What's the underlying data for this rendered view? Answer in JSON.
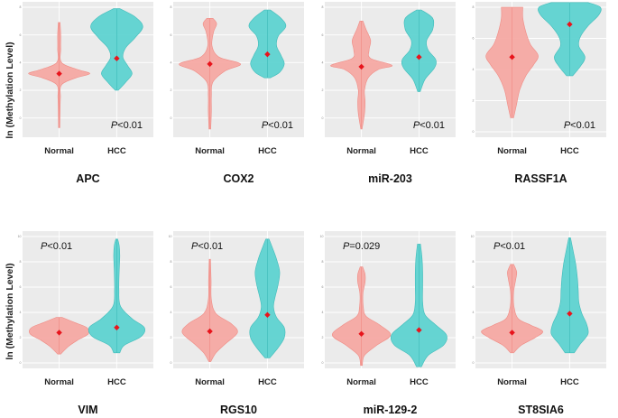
{
  "y_axis_label": "ln (Methylation Level)",
  "colors": {
    "normal_fill": "#f6a9a3",
    "normal_stroke": "#f08b84",
    "hcc_fill": "#5ed3d1",
    "hcc_stroke": "#3fbcba",
    "median": "#e8141c",
    "panel_bg": "#ebebeb",
    "grid": "#ffffff"
  },
  "chart_data": [
    {
      "type": "violin",
      "gene": "APC",
      "p_prefix": "P",
      "p_value": "<0.01",
      "categories": [
        "Normal",
        "HCC"
      ],
      "ylim": [
        -1,
        8
      ],
      "series": [
        {
          "name": "Normal",
          "median": 3.2,
          "min": -0.7,
          "max": 6.9,
          "density": [
            [
              -0.7,
              0.02
            ],
            [
              0.5,
              0.03
            ],
            [
              1.5,
              0.04
            ],
            [
              2.4,
              0.08
            ],
            [
              2.9,
              0.55
            ],
            [
              3.2,
              1.0
            ],
            [
              3.5,
              0.6
            ],
            [
              4.0,
              0.08
            ],
            [
              5.0,
              0.05
            ],
            [
              6.0,
              0.05
            ],
            [
              6.9,
              0.03
            ]
          ]
        },
        {
          "name": "HCC",
          "median": 4.3,
          "min": 2.0,
          "max": 7.9,
          "density": [
            [
              2.0,
              0.05
            ],
            [
              2.6,
              0.3
            ],
            [
              3.2,
              0.5
            ],
            [
              3.8,
              0.35
            ],
            [
              4.4,
              0.2
            ],
            [
              5.1,
              0.3
            ],
            [
              5.8,
              0.6
            ],
            [
              6.6,
              0.85
            ],
            [
              7.3,
              0.6
            ],
            [
              7.9,
              0.1
            ]
          ]
        }
      ]
    },
    {
      "type": "violin",
      "gene": "COX2",
      "p_prefix": "P",
      "p_value": "<0.01",
      "categories": [
        "Normal",
        "HCC"
      ],
      "ylim": [
        -1,
        8
      ],
      "series": [
        {
          "name": "Normal",
          "median": 3.9,
          "min": -0.8,
          "max": 7.2,
          "density": [
            [
              -0.8,
              0.03
            ],
            [
              0.5,
              0.05
            ],
            [
              1.6,
              0.05
            ],
            [
              2.6,
              0.1
            ],
            [
              3.4,
              0.5
            ],
            [
              3.9,
              1.0
            ],
            [
              4.4,
              0.3
            ],
            [
              5.2,
              0.07
            ],
            [
              6.2,
              0.12
            ],
            [
              6.8,
              0.22
            ],
            [
              7.2,
              0.1
            ]
          ]
        },
        {
          "name": "HCC",
          "median": 4.6,
          "min": 2.9,
          "max": 7.8,
          "density": [
            [
              2.9,
              0.1
            ],
            [
              3.3,
              0.4
            ],
            [
              3.9,
              0.55
            ],
            [
              4.5,
              0.45
            ],
            [
              5.2,
              0.3
            ],
            [
              5.9,
              0.35
            ],
            [
              6.6,
              0.6
            ],
            [
              7.2,
              0.45
            ],
            [
              7.8,
              0.1
            ]
          ]
        }
      ]
    },
    {
      "type": "violin",
      "gene": "miR-203",
      "p_prefix": "P",
      "p_value": "<0.01",
      "categories": [
        "Normal",
        "HCC"
      ],
      "ylim": [
        -1,
        8
      ],
      "series": [
        {
          "name": "Normal",
          "median": 3.7,
          "min": -0.8,
          "max": 7.0,
          "density": [
            [
              -0.8,
              0.02
            ],
            [
              0.3,
              0.1
            ],
            [
              1.2,
              0.12
            ],
            [
              2.0,
              0.1
            ],
            [
              2.9,
              0.22
            ],
            [
              3.5,
              0.55
            ],
            [
              3.8,
              1.0
            ],
            [
              4.3,
              0.3
            ],
            [
              4.9,
              0.25
            ],
            [
              5.6,
              0.3
            ],
            [
              6.4,
              0.15
            ],
            [
              7.0,
              0.05
            ]
          ]
        },
        {
          "name": "HCC",
          "median": 4.4,
          "min": 1.9,
          "max": 7.8,
          "density": [
            [
              1.9,
              0.04
            ],
            [
              2.8,
              0.2
            ],
            [
              3.6,
              0.5
            ],
            [
              4.2,
              0.55
            ],
            [
              4.9,
              0.3
            ],
            [
              5.6,
              0.25
            ],
            [
              6.4,
              0.45
            ],
            [
              7.2,
              0.45
            ],
            [
              7.8,
              0.08
            ]
          ]
        }
      ]
    },
    {
      "type": "violin",
      "gene": "RASSF1A",
      "p_prefix": "P",
      "p_value": "<0.01",
      "categories": [
        "Normal",
        "HCC"
      ],
      "ylim": [
        0,
        8
      ],
      "series": [
        {
          "name": "Normal",
          "median": 4.8,
          "min": 0.9,
          "max": 8.0,
          "density": [
            [
              0.9,
              0.05
            ],
            [
              1.8,
              0.15
            ],
            [
              2.7,
              0.25
            ],
            [
              3.6,
              0.45
            ],
            [
              4.3,
              0.7
            ],
            [
              4.9,
              0.85
            ],
            [
              5.6,
              0.6
            ],
            [
              6.4,
              0.45
            ],
            [
              7.3,
              0.35
            ],
            [
              8.0,
              0.35
            ]
          ]
        },
        {
          "name": "HCC",
          "median": 6.9,
          "min": 3.6,
          "max": 8.3,
          "density": [
            [
              3.6,
              0.1
            ],
            [
              4.2,
              0.35
            ],
            [
              4.8,
              0.5
            ],
            [
              5.5,
              0.3
            ],
            [
              6.1,
              0.35
            ],
            [
              6.8,
              0.6
            ],
            [
              7.5,
              0.95
            ],
            [
              8.0,
              1.0
            ],
            [
              8.3,
              0.6
            ]
          ]
        }
      ]
    },
    {
      "type": "violin",
      "gene": "VIM",
      "p_prefix": "P",
      "p_value": "<0.01",
      "categories": [
        "Normal",
        "HCC"
      ],
      "ylim": [
        0,
        10
      ],
      "series": [
        {
          "name": "Normal",
          "median": 2.4,
          "min": 0.7,
          "max": 3.6,
          "density": [
            [
              0.7,
              0.05
            ],
            [
              1.3,
              0.3
            ],
            [
              1.8,
              0.6
            ],
            [
              2.3,
              0.95
            ],
            [
              2.8,
              0.9
            ],
            [
              3.2,
              0.5
            ],
            [
              3.6,
              0.1
            ]
          ]
        },
        {
          "name": "HCC",
          "median": 2.8,
          "min": 0.8,
          "max": 9.8,
          "density": [
            [
              0.8,
              0.1
            ],
            [
              1.4,
              0.25
            ],
            [
              2.1,
              0.8
            ],
            [
              2.8,
              0.9
            ],
            [
              3.5,
              0.5
            ],
            [
              4.5,
              0.12
            ],
            [
              5.8,
              0.07
            ],
            [
              7.2,
              0.08
            ],
            [
              8.5,
              0.1
            ],
            [
              9.3,
              0.08
            ],
            [
              9.8,
              0.03
            ]
          ]
        }
      ]
    },
    {
      "type": "violin",
      "gene": "RGS10",
      "p_prefix": "P",
      "p_value": "<0.01",
      "categories": [
        "Normal",
        "HCC"
      ],
      "ylim": [
        0,
        10
      ],
      "series": [
        {
          "name": "Normal",
          "median": 2.5,
          "min": 0.1,
          "max": 8.2,
          "density": [
            [
              0.1,
              0.03
            ],
            [
              0.8,
              0.2
            ],
            [
              1.5,
              0.5
            ],
            [
              2.4,
              0.9
            ],
            [
              3.1,
              0.7
            ],
            [
              3.9,
              0.2
            ],
            [
              5.0,
              0.05
            ],
            [
              6.5,
              0.04
            ],
            [
              8.2,
              0.02
            ]
          ]
        },
        {
          "name": "HCC",
          "median": 3.8,
          "min": 0.4,
          "max": 9.8,
          "density": [
            [
              0.4,
              0.08
            ],
            [
              1.2,
              0.35
            ],
            [
              2.0,
              0.55
            ],
            [
              2.8,
              0.55
            ],
            [
              3.6,
              0.3
            ],
            [
              4.4,
              0.2
            ],
            [
              5.2,
              0.25
            ],
            [
              6.2,
              0.35
            ],
            [
              7.2,
              0.4
            ],
            [
              8.2,
              0.3
            ],
            [
              9.2,
              0.15
            ],
            [
              9.8,
              0.05
            ]
          ]
        }
      ]
    },
    {
      "type": "violin",
      "gene": "miR-129-2",
      "p_prefix": "P",
      "p_value": "=0.029",
      "categories": [
        "Normal",
        "HCC"
      ],
      "ylim": [
        0,
        10
      ],
      "series": [
        {
          "name": "Normal",
          "median": 2.3,
          "min": -0.2,
          "max": 7.6,
          "density": [
            [
              -0.2,
              0.03
            ],
            [
              0.6,
              0.1
            ],
            [
              1.4,
              0.5
            ],
            [
              2.2,
              0.95
            ],
            [
              3.0,
              0.6
            ],
            [
              3.7,
              0.15
            ],
            [
              4.5,
              0.06
            ],
            [
              5.5,
              0.05
            ],
            [
              6.4,
              0.12
            ],
            [
              7.0,
              0.12
            ],
            [
              7.6,
              0.04
            ]
          ]
        },
        {
          "name": "HCC",
          "median": 2.6,
          "min": -0.3,
          "max": 9.4,
          "density": [
            [
              -0.3,
              0.08
            ],
            [
              0.6,
              0.3
            ],
            [
              1.4,
              0.8
            ],
            [
              2.2,
              0.9
            ],
            [
              3.0,
              0.55
            ],
            [
              3.8,
              0.2
            ],
            [
              4.8,
              0.12
            ],
            [
              6.0,
              0.12
            ],
            [
              7.2,
              0.12
            ],
            [
              8.3,
              0.1
            ],
            [
              9.4,
              0.05
            ]
          ]
        }
      ]
    },
    {
      "type": "violin",
      "gene": "ST8SIA6",
      "p_prefix": "P",
      "p_value": "<0.01",
      "categories": [
        "Normal",
        "HCC"
      ],
      "ylim": [
        0,
        10
      ],
      "series": [
        {
          "name": "Normal",
          "median": 2.4,
          "min": 0.8,
          "max": 7.8,
          "density": [
            [
              0.8,
              0.05
            ],
            [
              1.4,
              0.3
            ],
            [
              2.0,
              0.75
            ],
            [
              2.5,
              1.0
            ],
            [
              3.0,
              0.6
            ],
            [
              3.5,
              0.2
            ],
            [
              4.5,
              0.06
            ],
            [
              5.6,
              0.05
            ],
            [
              6.6,
              0.12
            ],
            [
              7.2,
              0.15
            ],
            [
              7.8,
              0.05
            ]
          ]
        },
        {
          "name": "HCC",
          "median": 3.9,
          "min": 0.8,
          "max": 9.9,
          "density": [
            [
              0.8,
              0.15
            ],
            [
              1.5,
              0.35
            ],
            [
              2.3,
              0.6
            ],
            [
              3.1,
              0.55
            ],
            [
              3.9,
              0.4
            ],
            [
              4.8,
              0.3
            ],
            [
              5.8,
              0.28
            ],
            [
              6.8,
              0.25
            ],
            [
              7.8,
              0.2
            ],
            [
              8.8,
              0.12
            ],
            [
              9.9,
              0.03
            ]
          ]
        }
      ]
    }
  ]
}
